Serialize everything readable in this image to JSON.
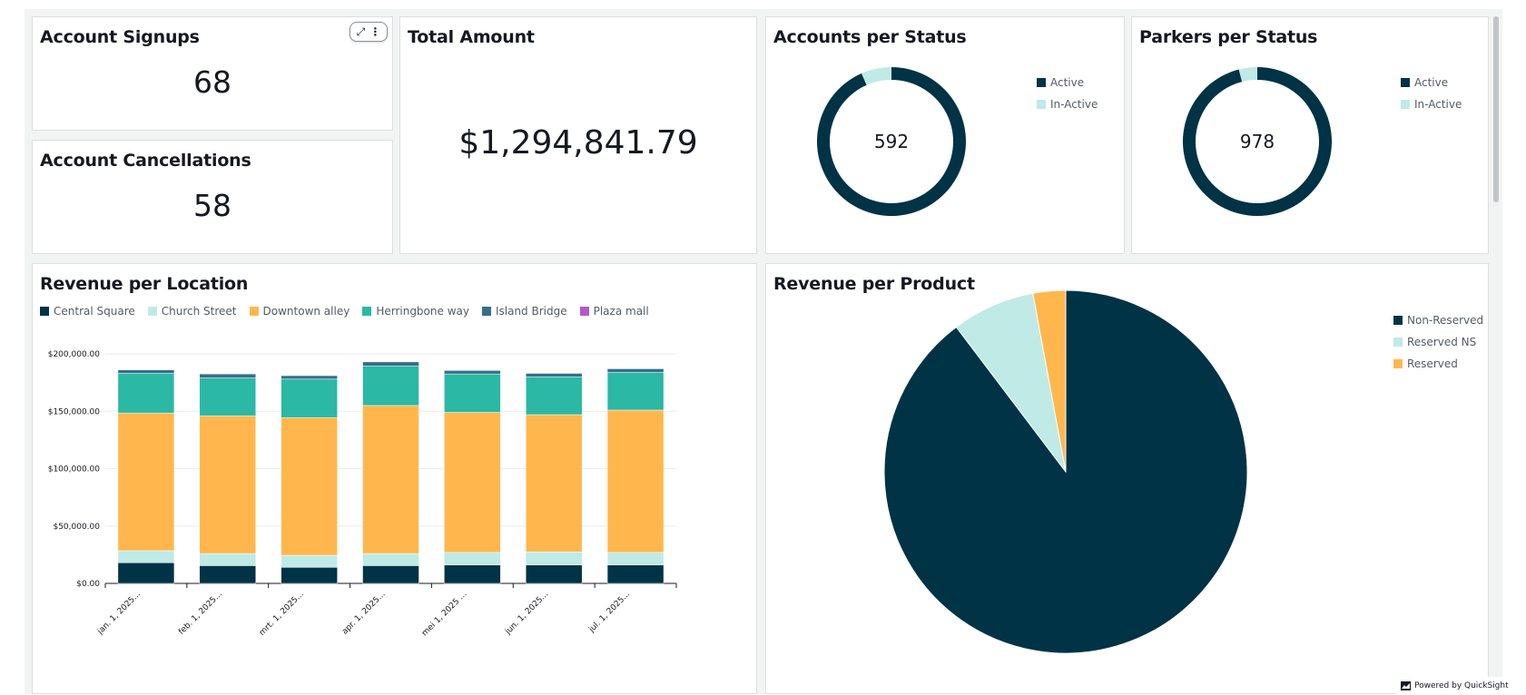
{
  "cards": {
    "signups": {
      "title": "Account Signups",
      "value": "68"
    },
    "cancellations": {
      "title": "Account Cancellations",
      "value": "58"
    },
    "total_amount": {
      "title": "Total Amount",
      "value": "$1,294,841.79"
    },
    "accounts_status": {
      "title": "Accounts per Status",
      "center_value": "592",
      "legend": [
        "Active",
        "In-Active"
      ]
    },
    "parkers_status": {
      "title": "Parkers per Status",
      "center_value": "978",
      "legend": [
        "Active",
        "In-Active"
      ]
    },
    "revenue_location": {
      "title": "Revenue per Location"
    },
    "revenue_product": {
      "title": "Revenue per Product"
    }
  },
  "card_actions": {
    "expand_icon": "expand-icon",
    "menu_icon": "more-vertical-icon"
  },
  "footer": {
    "powered_by": "Powered by QuickSight",
    "icon": "quicksight-logo-icon"
  },
  "colors": {
    "dark": "#003345",
    "light_teal": "#bfeae6",
    "orange": "#ffb74d",
    "teal": "#2bb8a5",
    "blue": "#356f8a",
    "purple": "#b35ac8"
  },
  "chart_data": [
    {
      "id": "accounts_per_status",
      "type": "pie",
      "style": "donut",
      "labels": [
        "Active",
        "In-Active"
      ],
      "values": [
        553,
        39
      ],
      "total": 592
    },
    {
      "id": "parkers_per_status",
      "type": "pie",
      "style": "donut",
      "labels": [
        "Active",
        "In-Active"
      ],
      "values": [
        939,
        39
      ],
      "total": 978
    },
    {
      "id": "revenue_per_location",
      "type": "bar",
      "stacked": true,
      "title": "Revenue per Location",
      "categories": [
        "jan. 1, 2025...",
        "feb. 1, 2025...",
        "mrt. 1, 2025...",
        "apr. 1, 2025...",
        "mei 1, 2025 ...",
        "jun. 1, 2025...",
        "jul. 1, 2025..."
      ],
      "series": [
        {
          "name": "Central Square",
          "values": [
            18000,
            15500,
            14000,
            15500,
            16000,
            16000,
            16000
          ]
        },
        {
          "name": "Church Street",
          "values": [
            10500,
            10500,
            10500,
            10500,
            11000,
            11500,
            11000
          ]
        },
        {
          "name": "Downtown alley",
          "values": [
            120000,
            120000,
            120000,
            129000,
            122000,
            119500,
            124000
          ]
        },
        {
          "name": "Herringbone way",
          "values": [
            34500,
            33000,
            33500,
            34500,
            33500,
            33000,
            33000
          ]
        },
        {
          "name": "Island Bridge",
          "values": [
            3000,
            3500,
            3000,
            3500,
            3000,
            3000,
            3000
          ]
        },
        {
          "name": "Plaza mall",
          "values": [
            0,
            0,
            0,
            0,
            0,
            0,
            0
          ]
        }
      ],
      "ylim": [
        0,
        200000
      ],
      "yticks": [
        "$0.00",
        "$50,000.00",
        "$100,000.00",
        "$150,000.00",
        "$200,000.00"
      ],
      "grid": true,
      "legend_position": "top"
    },
    {
      "id": "revenue_per_product",
      "type": "pie",
      "title": "Revenue per Product",
      "labels": [
        "Non-Reserved",
        "Reserved NS",
        "Reserved"
      ],
      "values": [
        89.7,
        7.4,
        2.9
      ],
      "legend_position": "right"
    }
  ]
}
